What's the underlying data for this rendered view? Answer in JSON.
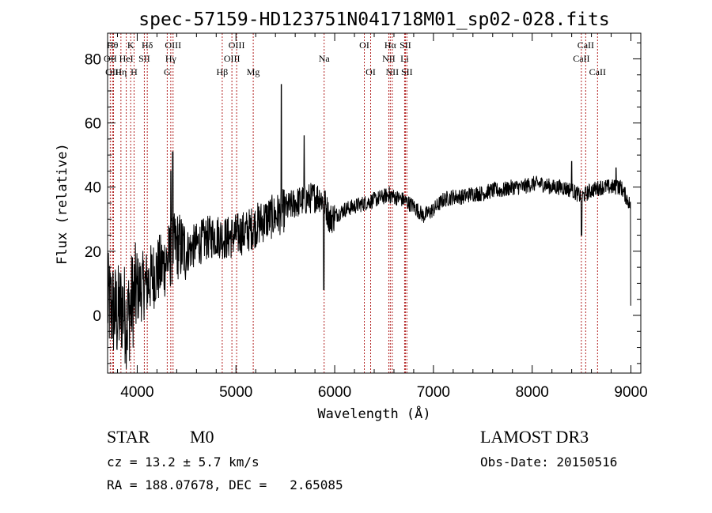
{
  "chart_data": {
    "type": "line",
    "title": "spec-57159-HD123751N041718M01_sp02-028.fits",
    "xlabel": "Wavelength (Å)",
    "ylabel": "Flux (relative)",
    "xlim": [
      3700,
      9100
    ],
    "ylim": [
      -18,
      88
    ],
    "xticks": [
      4000,
      5000,
      6000,
      7000,
      8000,
      9000
    ],
    "yticks": [
      0,
      20,
      40,
      60,
      80
    ],
    "grid": false,
    "spectrum_anchors": {
      "x": [
        3700,
        3750,
        3800,
        3850,
        3900,
        3950,
        4000,
        4050,
        4100,
        4150,
        4200,
        4250,
        4300,
        4350,
        4400,
        4450,
        4500,
        4600,
        4700,
        4800,
        4900,
        5000,
        5100,
        5200,
        5300,
        5400,
        5500,
        5600,
        5700,
        5800,
        5850,
        5900,
        5950,
        6000,
        6100,
        6200,
        6300,
        6400,
        6500,
        6560,
        6600,
        6700,
        6800,
        6900,
        7000,
        7100,
        7200,
        7300,
        7400,
        7500,
        7600,
        7700,
        7800,
        7900,
        8000,
        8100,
        8200,
        8300,
        8400,
        8450,
        8500,
        8550,
        8600,
        8700,
        8800,
        8900,
        8950,
        9000
      ],
      "y": [
        4,
        2,
        0,
        3,
        -2,
        5,
        8,
        9,
        10,
        12,
        14,
        15,
        17,
        20,
        22,
        21,
        20,
        22,
        24,
        25,
        24,
        25,
        26,
        28,
        30,
        31,
        33,
        35,
        36,
        37,
        37,
        35,
        30,
        31,
        33,
        34,
        35,
        36,
        37,
        38,
        37,
        36,
        34,
        31,
        33,
        36,
        37,
        37,
        38,
        38,
        39,
        39,
        40,
        40,
        41,
        41,
        40,
        40,
        39,
        38,
        37,
        38,
        39,
        40,
        40,
        40,
        37,
        34
      ]
    },
    "spectrum_features": [
      {
        "x": 4340,
        "y": 45
      },
      {
        "x": 4360,
        "y": 51
      },
      {
        "x": 5460,
        "y": 72
      },
      {
        "x": 5690,
        "y": 56
      },
      {
        "x": 5890,
        "y": 8
      },
      {
        "x": 6563,
        "y": 35
      },
      {
        "x": 8400,
        "y": 48
      },
      {
        "x": 8500,
        "y": 25
      },
      {
        "x": 8850,
        "y": 46
      },
      {
        "x": 8860,
        "y": 42
      },
      {
        "x": 9000,
        "y": 3
      }
    ],
    "spectral_lines": [
      {
        "x": 3727,
        "label": "OII",
        "row": 1
      },
      {
        "x": 3750,
        "label": "Hθ",
        "row": 0
      },
      {
        "x": 3760,
        "label": "OIII",
        "row": 2
      },
      {
        "x": 3835,
        "label": "Hη",
        "row": 2
      },
      {
        "x": 3889,
        "label": "HeI",
        "row": 1
      },
      {
        "x": 3934,
        "label": "K",
        "row": 0
      },
      {
        "x": 3968,
        "label": "H",
        "row": 2
      },
      {
        "x": 4072,
        "label": "SII",
        "row": 1
      },
      {
        "x": 4102,
        "label": "Hδ",
        "row": 0
      },
      {
        "x": 4304,
        "label": "G",
        "row": 2
      },
      {
        "x": 4340,
        "label": "Hγ",
        "row": 1
      },
      {
        "x": 4363,
        "label": "OIII",
        "row": 0
      },
      {
        "x": 4861,
        "label": "Hβ",
        "row": 2
      },
      {
        "x": 4959,
        "label": "OIII",
        "row": 1
      },
      {
        "x": 5007,
        "label": "OIII",
        "row": 0
      },
      {
        "x": 5175,
        "label": "Mg",
        "row": 2
      },
      {
        "x": 5893,
        "label": "Na",
        "row": 1
      },
      {
        "x": 6300,
        "label": "OI",
        "row": 0
      },
      {
        "x": 6364,
        "label": "OI",
        "row": 2
      },
      {
        "x": 6548,
        "label": "NII",
        "row": 1
      },
      {
        "x": 6563,
        "label": "Hα",
        "row": 0
      },
      {
        "x": 6583,
        "label": "NII",
        "row": 2
      },
      {
        "x": 6708,
        "label": "Li",
        "row": 1
      },
      {
        "x": 6716,
        "label": "SII",
        "row": 0
      },
      {
        "x": 6731,
        "label": "SII",
        "row": 2
      },
      {
        "x": 8498,
        "label": "CaII",
        "row": 1
      },
      {
        "x": 8542,
        "label": "CaII",
        "row": 0
      },
      {
        "x": 8662,
        "label": "CaII",
        "row": 2
      }
    ]
  },
  "info": {
    "class": "STAR",
    "subclass": "M0",
    "survey": "LAMOST DR3",
    "cz": "cz = 13.2 ± 5.7 km/s",
    "obsdate": "Obs-Date: 20150516",
    "radec": "RA = 188.07678, DEC =   2.65085"
  }
}
